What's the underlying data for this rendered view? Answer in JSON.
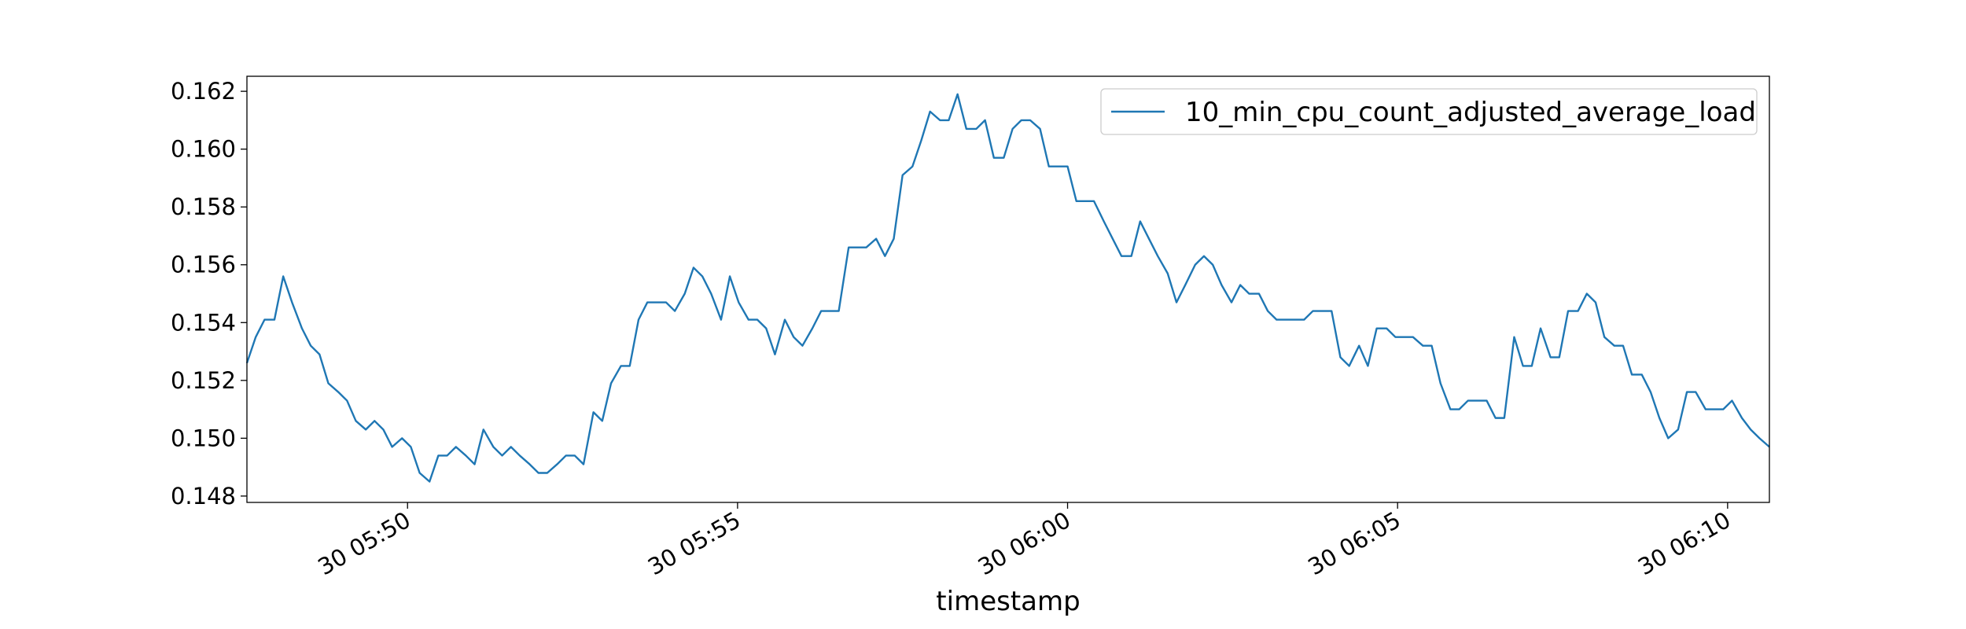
{
  "chart_data": {
    "type": "line",
    "xlabel": "timestamp",
    "x": [
      "30 05:47:34",
      "30 05:47:42",
      "30 05:47:50",
      "30 05:47:59",
      "30 05:48:07",
      "30 05:48:15",
      "30 05:48:24",
      "30 05:48:32",
      "30 05:48:40",
      "30 05:48:48",
      "30 05:48:57",
      "30 05:49:05",
      "30 05:49:13",
      "30 05:49:22",
      "30 05:49:30",
      "30 05:49:38",
      "30 05:49:46",
      "30 05:49:55",
      "30 05:50:03",
      "30 05:50:11",
      "30 05:50:20",
      "30 05:50:28",
      "30 05:50:36",
      "30 05:50:44",
      "30 05:50:53",
      "30 05:51:01",
      "30 05:51:09",
      "30 05:51:18",
      "30 05:51:26",
      "30 05:51:34",
      "30 05:51:42",
      "30 05:51:51",
      "30 05:51:59",
      "30 05:52:07",
      "30 05:52:16",
      "30 05:52:24",
      "30 05:52:32",
      "30 05:52:40",
      "30 05:52:49",
      "30 05:52:57",
      "30 05:53:05",
      "30 05:53:14",
      "30 05:53:22",
      "30 05:53:30",
      "30 05:53:38",
      "30 05:53:47",
      "30 05:53:55",
      "30 05:54:03",
      "30 05:54:12",
      "30 05:54:20",
      "30 05:54:28",
      "30 05:54:36",
      "30 05:54:45",
      "30 05:54:53",
      "30 05:55:01",
      "30 05:55:10",
      "30 05:55:18",
      "30 05:55:26",
      "30 05:55:34",
      "30 05:55:43",
      "30 05:55:51",
      "30 05:55:59",
      "30 05:56:08",
      "30 05:56:16",
      "30 05:56:24",
      "30 05:56:32",
      "30 05:56:41",
      "30 05:56:49",
      "30 05:56:57",
      "30 05:57:06",
      "30 05:57:14",
      "30 05:57:22",
      "30 05:57:30",
      "30 05:57:39",
      "30 05:57:47",
      "30 05:57:55",
      "30 05:58:04",
      "30 05:58:12",
      "30 05:58:20",
      "30 05:58:28",
      "30 05:58:37",
      "30 05:58:45",
      "30 05:58:53",
      "30 05:59:02",
      "30 05:59:10",
      "30 05:59:18",
      "30 05:59:26",
      "30 05:59:35",
      "30 05:59:43",
      "30 05:59:51",
      "30 06:00:00",
      "30 06:00:08",
      "30 06:00:16",
      "30 06:00:24",
      "30 06:00:33",
      "30 06:00:41",
      "30 06:00:49",
      "30 06:00:58",
      "30 06:01:06",
      "30 06:01:14",
      "30 06:01:22",
      "30 06:01:31",
      "30 06:01:39",
      "30 06:01:47",
      "30 06:01:56",
      "30 06:02:04",
      "30 06:02:12",
      "30 06:02:20",
      "30 06:02:29",
      "30 06:02:37",
      "30 06:02:45",
      "30 06:02:54",
      "30 06:03:02",
      "30 06:03:10",
      "30 06:03:18",
      "30 06:03:27",
      "30 06:03:35",
      "30 06:03:43",
      "30 06:03:52",
      "30 06:04:00",
      "30 06:04:08",
      "30 06:04:16",
      "30 06:04:25",
      "30 06:04:33",
      "30 06:04:41",
      "30 06:04:50",
      "30 06:04:58",
      "30 06:05:06",
      "30 06:05:14",
      "30 06:05:23",
      "30 06:05:31",
      "30 06:05:39",
      "30 06:05:48",
      "30 06:05:56",
      "30 06:06:04",
      "30 06:06:12",
      "30 06:06:21",
      "30 06:06:29",
      "30 06:06:37",
      "30 06:06:46",
      "30 06:06:54",
      "30 06:07:02",
      "30 06:07:10",
      "30 06:07:19",
      "30 06:07:27",
      "30 06:07:35",
      "30 06:07:44",
      "30 06:07:52",
      "30 06:08:00",
      "30 06:08:08",
      "30 06:08:17",
      "30 06:08:25",
      "30 06:08:33",
      "30 06:08:42",
      "30 06:08:50",
      "30 06:08:58",
      "30 06:09:06",
      "30 06:09:15",
      "30 06:09:23",
      "30 06:09:31",
      "30 06:09:40",
      "30 06:09:48",
      "30 06:09:56",
      "30 06:10:04",
      "30 06:10:13",
      "30 06:10:21",
      "30 06:10:29",
      "30 06:10:38"
    ],
    "series": [
      {
        "name": "10_min_cpu_count_adjusted_average_load",
        "color": "#1f77b4",
        "values": [
          0.1526,
          0.1535,
          0.1541,
          0.1541,
          0.1556,
          0.1547,
          0.1538,
          0.1532,
          0.1529,
          0.1519,
          0.1516,
          0.1513,
          0.1506,
          0.1503,
          0.1506,
          0.1503,
          0.1497,
          0.15,
          0.1497,
          0.1488,
          0.1485,
          0.1494,
          0.1494,
          0.1497,
          0.1494,
          0.1491,
          0.1503,
          0.1497,
          0.1494,
          0.1497,
          0.1494,
          0.1491,
          0.1488,
          0.1488,
          0.1491,
          0.1494,
          0.1494,
          0.1491,
          0.1509,
          0.1506,
          0.1519,
          0.1525,
          0.1525,
          0.1541,
          0.1547,
          0.1547,
          0.1547,
          0.1544,
          0.155,
          0.1559,
          0.1556,
          0.155,
          0.1541,
          0.1556,
          0.1547,
          0.1541,
          0.1541,
          0.1538,
          0.1529,
          0.1541,
          0.1535,
          0.1532,
          0.1538,
          0.1544,
          0.1544,
          0.1544,
          0.1566,
          0.1566,
          0.1566,
          0.1569,
          0.1563,
          0.1569,
          0.1591,
          0.1594,
          0.1603,
          0.1613,
          0.161,
          0.161,
          0.1619,
          0.1607,
          0.1607,
          0.161,
          0.1597,
          0.1597,
          0.1607,
          0.161,
          0.161,
          0.1607,
          0.1594,
          0.1594,
          0.1594,
          0.1582,
          0.1582,
          0.1582,
          0.1575,
          0.1569,
          0.1563,
          0.1563,
          0.1575,
          0.1569,
          0.1563,
          0.1557,
          0.1547,
          0.1553,
          0.156,
          0.1563,
          0.156,
          0.1553,
          0.1547,
          0.1553,
          0.155,
          0.155,
          0.1544,
          0.1541,
          0.1541,
          0.1541,
          0.1541,
          0.1544,
          0.1544,
          0.1544,
          0.1528,
          0.1525,
          0.1532,
          0.1525,
          0.1538,
          0.1538,
          0.1535,
          0.1535,
          0.1535,
          0.1532,
          0.1532,
          0.1519,
          0.151,
          0.151,
          0.1513,
          0.1513,
          0.1513,
          0.1507,
          0.1507,
          0.1535,
          0.1525,
          0.1525,
          0.1538,
          0.1528,
          0.1528,
          0.1544,
          0.1544,
          0.155,
          0.1547,
          0.1535,
          0.1532,
          0.1532,
          0.1522,
          0.1522,
          0.1516,
          0.1507,
          0.15,
          0.1503,
          0.1516,
          0.1516,
          0.151,
          0.151,
          0.151,
          0.1513,
          0.1507,
          0.1503,
          0.15,
          0.1497
        ]
      }
    ],
    "xlim": [
      "30 05:47:34",
      "30 06:10:38"
    ],
    "xticks": [
      "30 05:50",
      "30 05:55",
      "30 06:00",
      "30 06:05",
      "30 06:10"
    ],
    "ylim": [
      0.14778,
      0.16252
    ],
    "yticks": [
      0.148,
      {
        "value": 0.15,
        "label": "0.150"
      },
      0.152,
      0.154,
      0.156,
      0.158,
      {
        "value": 0.16,
        "label": "0.160"
      },
      0.162
    ],
    "grid": false,
    "legend": "upper right"
  }
}
